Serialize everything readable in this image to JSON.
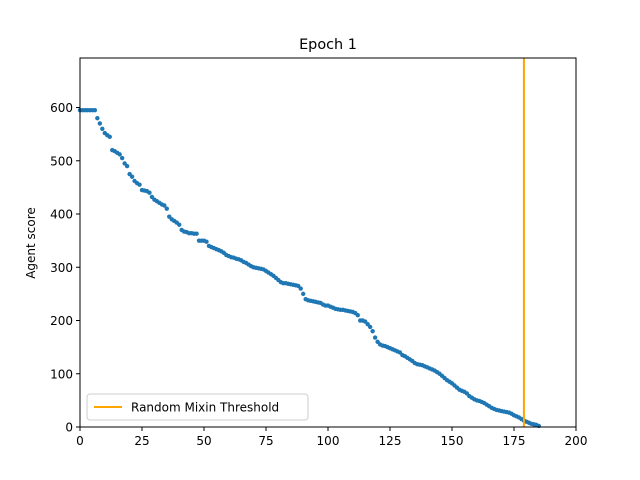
{
  "chart_data": {
    "type": "scatter",
    "title": "Epoch 1",
    "xlabel": "",
    "ylabel": "Agent score",
    "xlim": [
      0,
      200
    ],
    "ylim": [
      0,
      693
    ],
    "xticks": [
      "0",
      "25",
      "50",
      "75",
      "100",
      "125",
      "150",
      "175",
      "200"
    ],
    "yticks": [
      "0",
      "100",
      "200",
      "300",
      "400",
      "500",
      "600"
    ],
    "grid": false,
    "legend_position": "lower-left",
    "series": [
      {
        "name": "",
        "color": "#1f77b4",
        "x": [
          0,
          1,
          2,
          3,
          4,
          5,
          6,
          7,
          8,
          9,
          10,
          11,
          12,
          13,
          14,
          15,
          16,
          17,
          18,
          19,
          20,
          21,
          22,
          23,
          24,
          25,
          26,
          27,
          28,
          29,
          30,
          31,
          32,
          33,
          34,
          35,
          36,
          37,
          38,
          39,
          40,
          41,
          42,
          43,
          44,
          45,
          46,
          47,
          48,
          49,
          50,
          51,
          52,
          53,
          54,
          55,
          56,
          57,
          58,
          59,
          60,
          61,
          62,
          63,
          64,
          65,
          66,
          67,
          68,
          69,
          70,
          71,
          72,
          73,
          74,
          75,
          76,
          77,
          78,
          79,
          80,
          81,
          82,
          83,
          84,
          85,
          86,
          87,
          88,
          89,
          90,
          91,
          92,
          93,
          94,
          95,
          96,
          97,
          98,
          99,
          100,
          101,
          102,
          103,
          104,
          105,
          106,
          107,
          108,
          109,
          110,
          111,
          112,
          113,
          114,
          115,
          116,
          117,
          118,
          119,
          120,
          121,
          122,
          123,
          124,
          125,
          126,
          127,
          128,
          129,
          130,
          131,
          132,
          133,
          134,
          135,
          136,
          137,
          138,
          139,
          140,
          141,
          142,
          143,
          144,
          145,
          146,
          147,
          148,
          149,
          150,
          151,
          152,
          153,
          154,
          155,
          156,
          157,
          158,
          159,
          160,
          161,
          162,
          163,
          164,
          165,
          166,
          167,
          168,
          169,
          170,
          171,
          172,
          173,
          174,
          175,
          176,
          177,
          178,
          179,
          180,
          181,
          182,
          183,
          184,
          185
        ],
        "y": [
          595,
          595,
          595,
          595,
          595,
          595,
          595,
          580,
          570,
          560,
          552,
          548,
          545,
          520,
          518,
          515,
          512,
          505,
          495,
          490,
          475,
          470,
          462,
          458,
          455,
          445,
          444,
          443,
          440,
          432,
          427,
          424,
          421,
          418,
          416,
          410,
          395,
          390,
          387,
          384,
          380,
          370,
          367,
          366,
          364,
          364,
          363,
          363,
          350,
          350,
          350,
          348,
          340,
          338,
          336,
          334,
          332,
          330,
          327,
          323,
          321,
          319,
          318,
          316,
          315,
          313,
          310,
          308,
          305,
          302,
          300,
          299,
          298,
          297,
          296,
          293,
          290,
          287,
          284,
          280,
          276,
          272,
          270,
          270,
          269,
          268,
          267,
          266,
          265,
          260,
          250,
          240,
          238,
          237,
          236,
          235,
          234,
          233,
          230,
          228,
          228,
          226,
          224,
          222,
          221,
          220,
          220,
          219,
          218,
          217,
          216,
          214,
          210,
          200,
          200,
          198,
          193,
          188,
          180,
          168,
          160,
          155,
          153,
          152,
          150,
          148,
          146,
          144,
          142,
          140,
          135,
          133,
          130,
          127,
          124,
          120,
          118,
          117,
          116,
          114,
          112,
          110,
          108,
          106,
          103,
          100,
          96,
          92,
          88,
          85,
          82,
          78,
          74,
          70,
          68,
          66,
          63,
          58,
          55,
          52,
          50,
          49,
          47,
          45,
          42,
          39,
          36,
          34,
          32,
          31,
          30,
          29,
          28,
          27,
          25,
          22,
          20,
          18,
          15,
          12,
          10,
          8,
          6,
          5,
          4,
          2
        ]
      },
      {
        "name": "Random Mixin Threshold",
        "type": "vline",
        "color": "#ffa500",
        "x": 179
      }
    ]
  }
}
